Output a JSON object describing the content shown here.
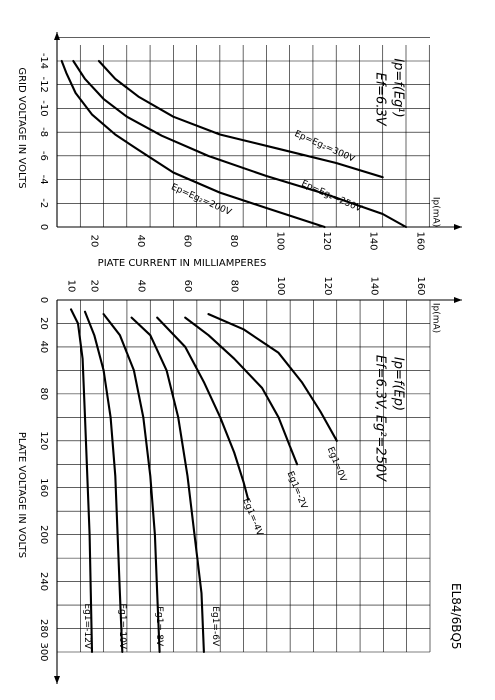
{
  "model": "EL84/6BQ5",
  "chart_data": [
    {
      "type": "line",
      "title": "Ip=f(Eg¹)",
      "subtitle": "Ef=6.3V",
      "xlabel": "PIATE CURRENT IN MILLIAMPERES",
      "ylabel": "GRID VOLTAGE IN VOLTS",
      "current_unit_label": "Ip(mA)",
      "current_ticks": [
        "20",
        "40",
        "60",
        "80",
        "100",
        "120",
        "140",
        "160"
      ],
      "voltage_ticks": [
        "0",
        "-2",
        "-4",
        "-6",
        "-8",
        "-10",
        "-12",
        "-14"
      ],
      "xlim": [
        0,
        160
      ],
      "ylim": [
        -15,
        0
      ],
      "series": [
        {
          "name": "Ep=Eg₂=200V",
          "label_at": [
            62,
            -2.3
          ],
          "x": [
            2,
            4,
            8,
            15,
            25,
            35,
            50,
            70,
            90,
            115
          ],
          "y": [
            -14,
            -13,
            -11.3,
            -9.5,
            -7.8,
            -6.5,
            -4.6,
            -2.9,
            -1.6,
            0
          ]
        },
        {
          "name": "Ep=Eg₂=250V",
          "label_at": [
            118,
            -2.6
          ],
          "x": [
            7,
            12,
            20,
            30,
            45,
            65,
            90,
            115,
            140,
            150
          ],
          "y": [
            -14,
            -12.5,
            -10.8,
            -9.3,
            -7.7,
            -6,
            -4.3,
            -2.8,
            -1.1,
            0
          ]
        },
        {
          "name": "Ep=Eg₂=300V",
          "label_at": [
            115,
            -6.8
          ],
          "x": [
            18,
            25,
            35,
            50,
            70,
            95,
            120,
            140
          ],
          "y": [
            -14,
            -12.5,
            -11,
            -9.3,
            -7.8,
            -6.6,
            -5.4,
            -4.2
          ]
        }
      ]
    },
    {
      "type": "line",
      "title": "Ip=f(Ep)",
      "subtitle": "Ef=6.3V, Eg²=250V",
      "xlabel": "PLATE VOLTAGE IN VOLTS",
      "current_unit_label": "Ip(mA)",
      "current_ticks": [
        "10",
        "20",
        "40",
        "60",
        "80",
        "100",
        "120",
        "140",
        "160"
      ],
      "voltage_ticks": [
        "0",
        "20",
        "40",
        "80",
        "120",
        "160",
        "200",
        "240",
        "280",
        "300"
      ],
      "xlim": [
        0,
        300
      ],
      "ylim": [
        0,
        160
      ],
      "series": [
        {
          "name": "Eg1=0V",
          "label_at": [
            140,
            120
          ],
          "x": [
            12,
            25,
            45,
            70,
            95,
            120
          ],
          "y": [
            65,
            80,
            95,
            105,
            113,
            120
          ]
        },
        {
          "name": "Eg1=-2V",
          "label_at": [
            162,
            103
          ],
          "x": [
            15,
            30,
            50,
            75,
            100,
            125,
            140
          ],
          "y": [
            55,
            65,
            76,
            88,
            95,
            100,
            103
          ]
        },
        {
          "name": "Eg1=-4V",
          "label_at": [
            185,
            84
          ],
          "x": [
            15,
            40,
            70,
            100,
            130,
            155,
            170
          ],
          "y": [
            43,
            55,
            63,
            70,
            76,
            80,
            82
          ]
        },
        {
          "name": "Eg1=-6V",
          "label_at": [
            278,
            68
          ],
          "x": [
            15,
            30,
            60,
            100,
            150,
            200,
            250,
            300
          ],
          "y": [
            32,
            40,
            47,
            52,
            56,
            59,
            62,
            63
          ]
        },
        {
          "name": "Eg1=-8V",
          "label_at": [
            278,
            44
          ],
          "x": [
            12,
            30,
            60,
            100,
            150,
            200,
            250,
            300
          ],
          "y": [
            20,
            27,
            33,
            37,
            40,
            42,
            43,
            44
          ]
        },
        {
          "name": "Eg1=-10V",
          "label_at": [
            278,
            28
          ],
          "x": [
            10,
            30,
            60,
            100,
            150,
            200,
            250,
            300
          ],
          "y": [
            12,
            16,
            20,
            23,
            25,
            26,
            27,
            28
          ]
        },
        {
          "name": "Eg1=-12V",
          "label_at": [
            278,
            13
          ],
          "x": [
            8,
            20,
            50,
            100,
            150,
            200,
            250,
            300
          ],
          "y": [
            6,
            9,
            11,
            12,
            13,
            14,
            14.5,
            15
          ]
        }
      ]
    }
  ]
}
